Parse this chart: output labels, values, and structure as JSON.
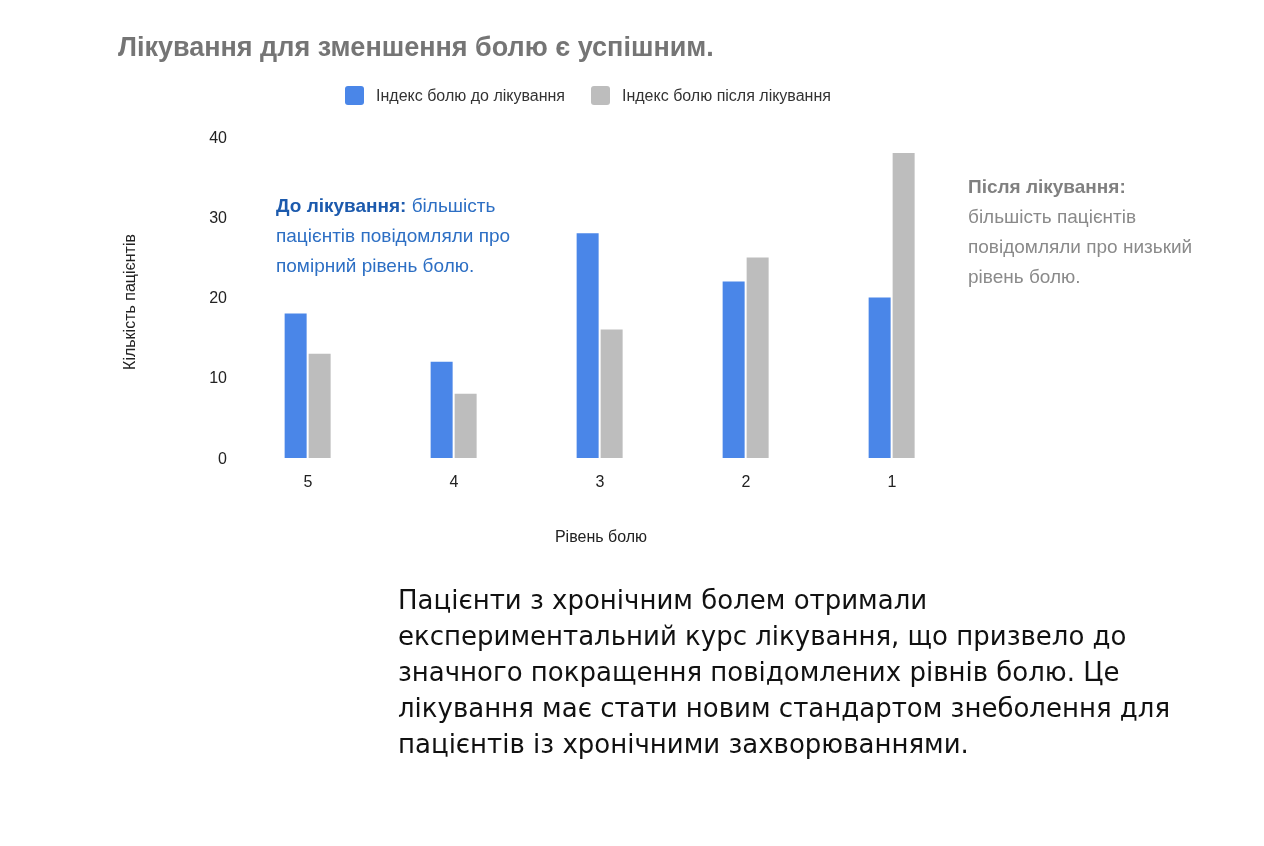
{
  "chart_data": {
    "type": "bar",
    "title": "Лікування для зменшення болю є успішним.",
    "xlabel": "Рівень болю",
    "ylabel": "Кількість пацієнтів",
    "categories": [
      "5",
      "4",
      "3",
      "2",
      "1"
    ],
    "series": [
      {
        "name": "Індекс болю до лікування",
        "color": "#4a86e8",
        "values": [
          18,
          12,
          28,
          22,
          20
        ]
      },
      {
        "name": "Індекс болю після лікування",
        "color": "#bdbdbd",
        "values": [
          13,
          8,
          16,
          25,
          38
        ]
      }
    ],
    "ylim": [
      0,
      40
    ],
    "yticks": [
      0,
      10,
      20,
      30,
      40
    ],
    "grid": false,
    "legend": "top",
    "annotations": [
      "До лікування: більшість пацієнтів повідомляли про помірний рівень болю.",
      "Після лікування: більшість пацієнтів повідомляли про низький рівень болю.",
      "Пацієнти з хронічним болем отримали експериментальний курс лікування, що призвело до значного покращення повідомлених рівнів болю. Це лікування має стати новим стандартом знеболення для пацієнтів із хронічними захворюваннями."
    ]
  }
}
